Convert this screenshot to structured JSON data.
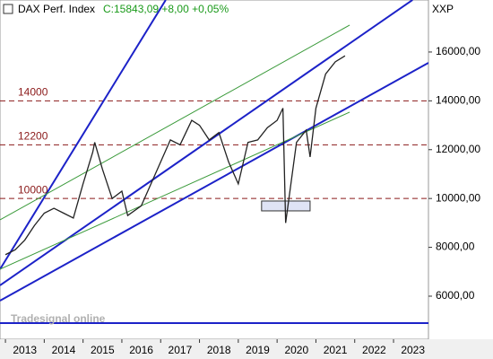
{
  "chart_data": {
    "type": "line",
    "title": "DAX Perf. Index",
    "quote": "C:15843,09 +8,00 +0,05%",
    "axis_label": "XXP",
    "watermark": "Tradesignal online",
    "series": [
      {
        "name": "DAX",
        "color": "#222222",
        "x": [
          2013.0,
          2013.25,
          2013.5,
          2013.75,
          2014.0,
          2014.25,
          2014.5,
          2014.75,
          2015.0,
          2015.25,
          2015.3,
          2015.5,
          2015.75,
          2016.0,
          2016.15,
          2016.5,
          2016.75,
          2017.0,
          2017.25,
          2017.5,
          2017.8,
          2018.0,
          2018.25,
          2018.5,
          2018.75,
          2019.0,
          2019.25,
          2019.5,
          2019.75,
          2020.0,
          2020.15,
          2020.22,
          2020.5,
          2020.75,
          2020.85,
          2021.0,
          2021.25,
          2021.5,
          2021.75
        ],
        "values": [
          7700,
          7900,
          8300,
          8900,
          9400,
          9600,
          9400,
          9200,
          10600,
          11900,
          12300,
          11200,
          10000,
          10300,
          9300,
          9700,
          10600,
          11500,
          12400,
          12200,
          13200,
          13000,
          12400,
          12700,
          11500,
          10600,
          12300,
          12400,
          12900,
          13200,
          13700,
          9000,
          12300,
          12800,
          11700,
          13700,
          15100,
          15600,
          15843
        ]
      }
    ],
    "trendlines": [
      {
        "color": "#1c22c8",
        "x": [
          2012.86,
          2017.13
        ],
        "y": [
          7103,
          18132
        ]
      },
      {
        "color": "#1c22c8",
        "x": [
          2012.86,
          2023.49
        ],
        "y": [
          6441,
          18132
        ]
      },
      {
        "color": "#1c22c8",
        "x": [
          2012.86,
          2023.9
        ],
        "y": [
          5816,
          15559
        ]
      },
      {
        "color": "#1c22c8",
        "x": [
          2012.86,
          2023.9
        ],
        "y": [
          4897,
          4897
        ]
      },
      {
        "color": "#3a9a3a",
        "x": [
          2012.86,
          2021.87
        ],
        "y": [
          9125,
          17103
        ]
      },
      {
        "color": "#3a9a3a",
        "x": [
          2012.86,
          2021.87
        ],
        "y": [
          7103,
          13537
        ]
      }
    ],
    "levels": [
      14000,
      12200,
      10000
    ],
    "level_color": "#8b1a1a",
    "support_box": {
      "x": [
        2019.6,
        2020.85
      ],
      "y": [
        9493,
        9897
      ]
    },
    "xlim": [
      2012.86,
      2023.9
    ],
    "ylim": [
      4235,
      18130
    ],
    "xticks": [
      2013,
      2014,
      2015,
      2016,
      2017,
      2018,
      2019,
      2020,
      2021,
      2022,
      2023
    ],
    "yticks": [
      {
        "value": 6000,
        "label": "6000,00"
      },
      {
        "value": 8000,
        "label": "8000,00"
      },
      {
        "value": 10000,
        "label": "10000,00"
      },
      {
        "value": 12000,
        "label": "12000,00"
      },
      {
        "value": 14000,
        "label": "14000,00"
      },
      {
        "value": 16000,
        "label": "16000,00"
      }
    ]
  }
}
